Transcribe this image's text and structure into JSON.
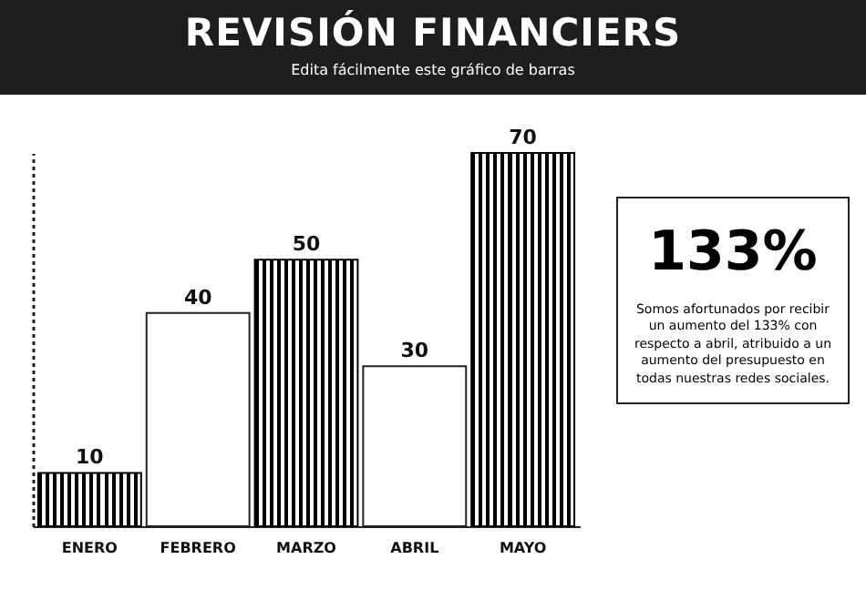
{
  "chart_data": {
    "type": "bar",
    "title": "REVISIÓN FINANCIERS",
    "subtitle": "Edita fácilmente este gráfico de barras",
    "categories": [
      "ENERO",
      "FEBRERO",
      "MARZO",
      "ABRIL",
      "MAYO"
    ],
    "values": [
      10,
      40,
      50,
      30,
      70
    ],
    "colors": [
      "#000000",
      "#ffffff",
      "#000000",
      "#ffffff",
      "#000000"
    ],
    "data_labels": true,
    "tick_labels": "x",
    "grid": false,
    "annotations": [
      "133%",
      "Somos afortunados por recibir un aumento del 133% con respecto a abril, atribuido a un aumento del presupuesto en todas nuestras redes sociales."
    ]
  }
}
